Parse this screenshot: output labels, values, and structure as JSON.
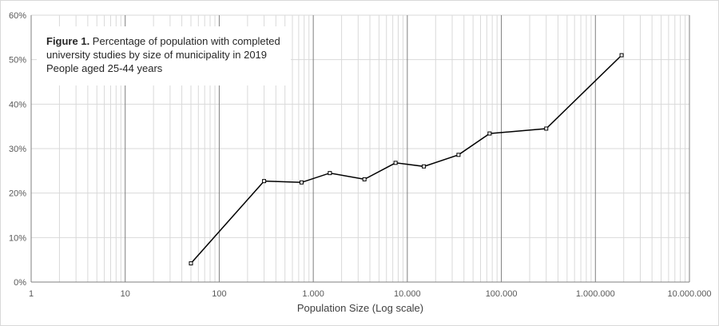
{
  "chart_data": {
    "type": "line",
    "title_bold": "Figure 1.",
    "title_rest": " Percentage of population with completed university studies by size of municipality in 2019",
    "subtitle": "People aged 25-44 years",
    "xlabel": "Population Size (Log scale)",
    "ylabel": "",
    "x_scale": "log",
    "xlim": [
      1,
      10000000
    ],
    "ylim": [
      0,
      60
    ],
    "grid": true,
    "x_ticks": [
      1,
      10,
      100,
      1000,
      10000,
      100000,
      1000000,
      10000000
    ],
    "x_tick_labels": [
      "1",
      "10",
      "100",
      "1.000",
      "10.000",
      "100.000",
      "1.000.000",
      "10.000.000"
    ],
    "y_ticks": [
      0,
      10,
      20,
      30,
      40,
      50,
      60
    ],
    "y_tick_labels": [
      "0%",
      "10%",
      "20%",
      "30%",
      "40%",
      "50%",
      "60%"
    ],
    "line_color": "#000000",
    "series": [
      {
        "x": [
          50,
          300,
          750,
          1500,
          3500,
          7500,
          15000,
          35000,
          75000,
          300000,
          1900000
        ],
        "values": [
          4.2,
          22.7,
          22.4,
          24.5,
          23.1,
          26.8,
          26.0,
          28.6,
          33.4,
          34.5,
          51.0
        ]
      }
    ]
  }
}
